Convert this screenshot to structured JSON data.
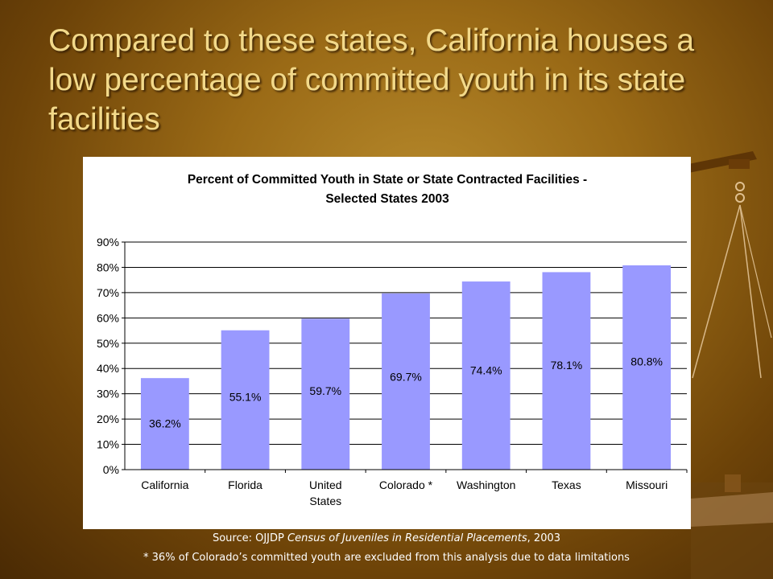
{
  "slide": {
    "title": "Compared to these states, California houses a low percentage of committed youth in its state facilities"
  },
  "chart_data": {
    "type": "bar",
    "title_lines": [
      "Percent of Committed Youth in State or State Contracted Facilities -",
      "Selected States 2003"
    ],
    "categories": [
      [
        "California"
      ],
      [
        "Florida"
      ],
      [
        "United",
        "States"
      ],
      [
        "Colorado *"
      ],
      [
        "Washington"
      ],
      [
        "Texas"
      ],
      [
        "Missouri"
      ]
    ],
    "values": [
      36.2,
      55.1,
      59.7,
      69.7,
      74.4,
      78.1,
      80.8
    ],
    "data_labels": [
      "36.2%",
      "55.1%",
      "59.7%",
      "69.7%",
      "74.4%",
      "78.1%",
      "80.8%"
    ],
    "ylim": [
      0,
      90
    ],
    "yticks": [
      "0%",
      "10%",
      "20%",
      "30%",
      "40%",
      "50%",
      "60%",
      "70%",
      "80%",
      "90%"
    ],
    "grid": true,
    "legend": "none",
    "bar_color": "#9999ff",
    "xlabel": "",
    "ylabel": ""
  },
  "footer": {
    "source_prefix": "Source: OJJDP ",
    "source_italic": "Census of Juveniles in Residential Placements",
    "source_suffix": ", 2003",
    "note": "* 36% of Colorado’s committed youth are excluded from this analysis due to data limitations"
  },
  "colors": {
    "title_text": "#f2d98a",
    "chart_bar": "#9999ff"
  }
}
